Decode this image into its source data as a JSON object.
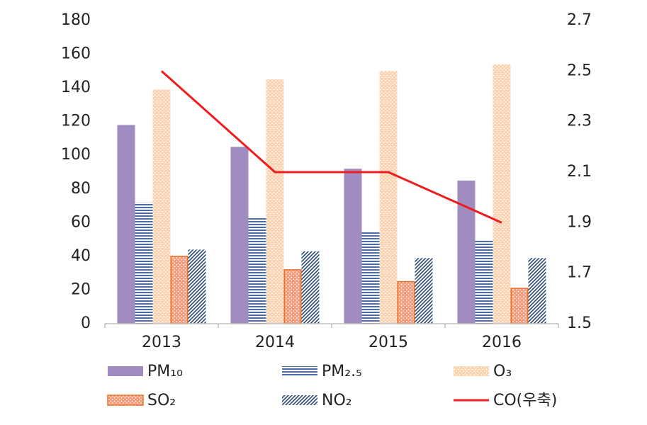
{
  "chart_data": {
    "type": "bar",
    "categories": [
      "2013",
      "2014",
      "2015",
      "2016"
    ],
    "series": [
      {
        "name": "PM₁₀",
        "color": "#a08cc0",
        "pattern": "solid",
        "values": [
          118,
          105,
          92,
          85
        ]
      },
      {
        "name": "PM₂.₅",
        "color": "#4a6fa5",
        "pattern": "hlines",
        "values": [
          72,
          63,
          55,
          50
        ]
      },
      {
        "name": "O₃",
        "color": "#fbd3b0",
        "pattern": "dots",
        "values": [
          139,
          145,
          150,
          154
        ]
      },
      {
        "name": "SO₂",
        "color": "#f79a7a",
        "edgecolor": "#e8702a",
        "pattern": "dots",
        "values": [
          40,
          32,
          25,
          21
        ]
      },
      {
        "name": "NO₂",
        "color": "#2e4a7a",
        "pattern": "diag",
        "values": [
          44,
          43,
          39,
          39
        ]
      },
      {
        "name": "CO(우축)",
        "color": "#ee1c1c",
        "type": "line",
        "axis": "y2",
        "values": [
          2.5,
          2.1,
          2.1,
          1.9
        ]
      }
    ],
    "ylim": [
      0,
      180
    ],
    "yticks": [
      0,
      20,
      40,
      60,
      80,
      100,
      120,
      140,
      160,
      180
    ],
    "y2lim": [
      1.5,
      2.7
    ],
    "y2ticks": [
      1.5,
      1.7,
      1.9,
      2.1,
      2.3,
      2.5,
      2.7
    ],
    "grid": false
  }
}
